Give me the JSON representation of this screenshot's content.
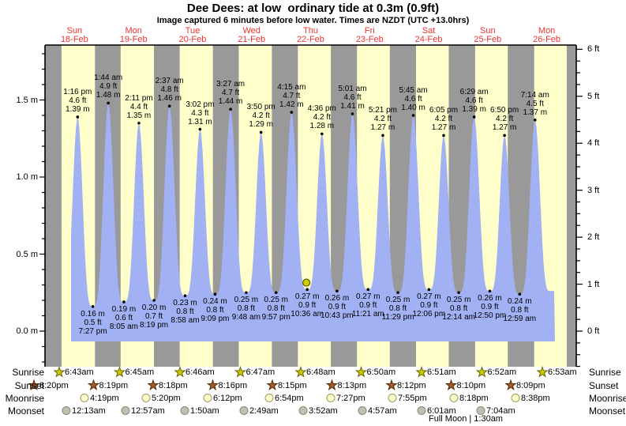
{
  "page": {
    "title": "Dee Dees: at low  ordinary tide at 0.3m (0.9ft)",
    "subtitle": "Image captured 6 minutes before low water. Times are NZDT (UTC +13.0hrs)"
  },
  "colors": {
    "day_band": "#ffffcc",
    "night_band": "#999999",
    "tide_fill": "#a1b1f3",
    "day_label": "#ee3333",
    "axis": "#000000",
    "current_marker": "#cccc00",
    "current_marker_stroke": "#555500",
    "sunrise_star": "#cccc00",
    "sunrise_star_stroke": "#666600",
    "sunset_star": "#a05a2f",
    "sunset_star_stroke": "#5a2d00",
    "moonrise_circle": "#ffffcc",
    "moonrise_circle_stroke": "#999966",
    "moonset_circle": "#c0c0b0",
    "moonset_circle_stroke": "#88887a"
  },
  "chart_data": {
    "type": "area",
    "title": "Dee Dees: at low  ordinary tide at 0.3m (0.9ft)",
    "subtitle": "Image captured 6 minutes before low water. Times are NZDT (UTC +13.0hrs)",
    "x_axis": {
      "days": [
        {
          "dow": "Sun",
          "date": "18-Feb"
        },
        {
          "dow": "Mon",
          "date": "19-Feb"
        },
        {
          "dow": "Tue",
          "date": "20-Feb"
        },
        {
          "dow": "Wed",
          "date": "21-Feb"
        },
        {
          "dow": "Thu",
          "date": "22-Feb"
        },
        {
          "dow": "Fri",
          "date": "23-Feb"
        },
        {
          "dow": "Sat",
          "date": "24-Feb"
        },
        {
          "dow": "Sun",
          "date": "25-Feb"
        },
        {
          "dow": "Mon",
          "date": "26-Feb"
        }
      ]
    },
    "y_axis_left": {
      "unit": "m",
      "major_ticks": [
        0,
        0.5,
        1.0,
        1.5
      ],
      "labels": [
        "0.0 m",
        "0.5 m",
        "1.0 m",
        "1.5 m"
      ]
    },
    "y_axis_right": {
      "unit": "ft",
      "major_ticks": [
        0,
        1,
        2,
        3,
        4,
        5,
        6
      ],
      "labels": [
        "0 ft",
        "1 ft",
        "2 ft",
        "3 ft",
        "4 ft",
        "5 ft",
        "6 ft"
      ]
    },
    "ylim_m": [
      -0.23,
      1.86
    ],
    "grid": false,
    "legend": false,
    "events": [
      {
        "day": 0,
        "time": "1:16 pm",
        "type": "high",
        "m": 1.39,
        "ft": 4.6
      },
      {
        "day": 0,
        "time": "7:27 pm",
        "type": "low",
        "m": 0.16,
        "ft": 0.5
      },
      {
        "day": 1,
        "time": "1:44 am",
        "type": "high",
        "m": 1.48,
        "ft": 4.9
      },
      {
        "day": 1,
        "time": "8:05 am",
        "type": "low",
        "m": 0.19,
        "ft": 0.6
      },
      {
        "day": 1,
        "time": "2:11 pm",
        "type": "high",
        "m": 1.35,
        "ft": 4.4
      },
      {
        "day": 1,
        "time": "8:19 pm",
        "type": "low",
        "m": 0.2,
        "ft": 0.7
      },
      {
        "day": 2,
        "time": "2:37 am",
        "type": "high",
        "m": 1.46,
        "ft": 4.8
      },
      {
        "day": 2,
        "time": "8:58 am",
        "type": "low",
        "m": 0.23,
        "ft": 0.8
      },
      {
        "day": 2,
        "time": "3:02 pm",
        "type": "high",
        "m": 1.31,
        "ft": 4.3
      },
      {
        "day": 2,
        "time": "9:09 pm",
        "type": "low",
        "m": 0.24,
        "ft": 0.8
      },
      {
        "day": 3,
        "time": "3:27 am",
        "type": "high",
        "m": 1.44,
        "ft": 4.7
      },
      {
        "day": 3,
        "time": "9:48 am",
        "type": "low",
        "m": 0.25,
        "ft": 0.8
      },
      {
        "day": 3,
        "time": "3:50 pm",
        "type": "high",
        "m": 1.29,
        "ft": 4.2
      },
      {
        "day": 3,
        "time": "9:57 pm",
        "type": "low",
        "m": 0.25,
        "ft": 0.8
      },
      {
        "day": 4,
        "time": "4:15 am",
        "type": "high",
        "m": 1.42,
        "ft": 4.7
      },
      {
        "day": 4,
        "time": "10:36 am",
        "type": "low",
        "m": 0.27,
        "ft": 0.9,
        "current": true
      },
      {
        "day": 4,
        "time": "4:36 pm",
        "type": "high",
        "m": 1.28,
        "ft": 4.2
      },
      {
        "day": 4,
        "time": "10:43 pm",
        "type": "low",
        "m": 0.26,
        "ft": 0.9
      },
      {
        "day": 5,
        "time": "5:01 am",
        "type": "high",
        "m": 1.41,
        "ft": 4.6
      },
      {
        "day": 5,
        "time": "11:21 am",
        "type": "low",
        "m": 0.27,
        "ft": 0.9
      },
      {
        "day": 5,
        "time": "5:21 pm",
        "type": "high",
        "m": 1.27,
        "ft": 4.2
      },
      {
        "day": 5,
        "time": "11:29 pm",
        "type": "low",
        "m": 0.25,
        "ft": 0.8
      },
      {
        "day": 6,
        "time": "5:45 am",
        "type": "high",
        "m": 1.4,
        "ft": 4.6
      },
      {
        "day": 6,
        "time": "12:06 pm",
        "type": "low",
        "m": 0.27,
        "ft": 0.9
      },
      {
        "day": 6,
        "time": "6:05 pm",
        "type": "high",
        "m": 1.27,
        "ft": 4.2
      },
      {
        "day": 7,
        "time": "12:14 am",
        "type": "low",
        "m": 0.25,
        "ft": 0.8
      },
      {
        "day": 7,
        "time": "6:29 am",
        "type": "high",
        "m": 1.39,
        "ft": 4.6
      },
      {
        "day": 7,
        "time": "12:50 pm",
        "type": "low",
        "m": 0.26,
        "ft": 0.9
      },
      {
        "day": 7,
        "time": "6:50 pm",
        "type": "high",
        "m": 1.27,
        "ft": 4.2
      },
      {
        "day": 8,
        "time": "12:59 am",
        "type": "low",
        "m": 0.24,
        "ft": 0.8
      },
      {
        "day": 8,
        "time": "7:14 am",
        "type": "high",
        "m": 1.37,
        "ft": 4.5
      }
    ]
  },
  "astro": {
    "sunrise": {
      "label": "Sunrise",
      "times": [
        "6:43am",
        "6:45am",
        "6:46am",
        "6:47am",
        "6:48am",
        "6:50am",
        "6:51am",
        "6:52am",
        "6:53am"
      ]
    },
    "sunset": {
      "label": "Sunset",
      "times": [
        "8:20pm",
        "8:19pm",
        "8:18pm",
        "8:16pm",
        "8:15pm",
        "8:13pm",
        "8:12pm",
        "8:10pm",
        "8:09pm"
      ]
    },
    "moonrise": {
      "label": "Moonrise",
      "times": [
        "4:19pm",
        "5:20pm",
        "6:12pm",
        "6:54pm",
        "7:27pm",
        "7:55pm",
        "8:18pm",
        "8:38pm"
      ]
    },
    "moonset": {
      "label": "Moonset",
      "times": [
        "12:13am",
        "12:57am",
        "1:50am",
        "2:49am",
        "3:52am",
        "4:57am",
        "6:01am",
        "7:04am"
      ]
    },
    "moon_phase": "Full Moon | 1:30am"
  }
}
